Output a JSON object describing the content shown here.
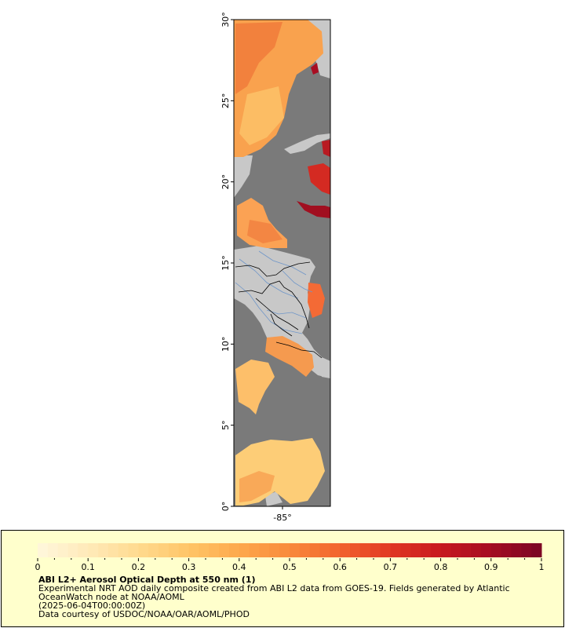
{
  "map": {
    "lat_labels": [
      "0°",
      "5°",
      "10°",
      "15°",
      "20°",
      "25°",
      "30°"
    ],
    "lon_labels": [
      "-85°"
    ],
    "colors": {
      "ocean": "#7a7a7a",
      "land": "#c8c8c8",
      "borders": "#000000",
      "rivers": "#6f96c8"
    }
  },
  "legend": {
    "ticks": [
      "0",
      "0.1",
      "0.2",
      "0.3",
      "0.4",
      "0.5",
      "0.6",
      "0.7",
      "0.8",
      "0.9",
      "1"
    ],
    "colormap": [
      "#fff6d9",
      "#ffe9b6",
      "#ffd98c",
      "#ffc466",
      "#fda84c",
      "#f98a3b",
      "#f2642e",
      "#e23a24",
      "#c91a1f",
      "#a80d22",
      "#7e0624"
    ],
    "title": "ABI L2+ Aerosol Optical Depth at 550 nm (1)",
    "description_line1": "Experimental NRT AOD daily composite created from ABI L2 data from GOES-19. Fields generated by Atlantic",
    "description_line2": "OceanWatch node at NOAA/AOML",
    "date": "(2025-06-04T00:00:00Z)",
    "credit": "Data courtesy of USDOC/NOAA/OAR/AOML/PHOD"
  }
}
